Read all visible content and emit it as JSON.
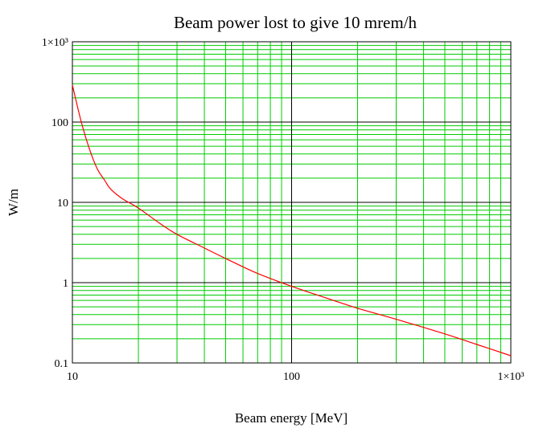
{
  "chart_data": {
    "type": "line",
    "title": "Beam power lost to give 10 mrem/h",
    "xlabel": "Beam energy [MeV]",
    "ylabel": "W/m",
    "xscale": "log",
    "yscale": "log",
    "xlim": [
      10,
      1000
    ],
    "ylim": [
      0.1,
      1000
    ],
    "grid": true,
    "x_tick_labels": [
      "10",
      "100",
      "1×10³"
    ],
    "y_tick_labels": [
      "0.1",
      "1",
      "10",
      "100",
      "1×10³"
    ],
    "series": [
      {
        "color": "#ff0000",
        "x": [
          10,
          11,
          12,
          13,
          14,
          15,
          17,
          20,
          25,
          30,
          40,
          50,
          70,
          100,
          150,
          200,
          300,
          500,
          700,
          1000
        ],
        "y": [
          290,
          98,
          45,
          26,
          19,
          14.5,
          11,
          8.5,
          5.5,
          4.0,
          2.7,
          2.0,
          1.3,
          0.9,
          0.62,
          0.48,
          0.35,
          0.23,
          0.17,
          0.123
        ]
      }
    ]
  },
  "colors": {
    "major_grid": "#000000",
    "minor_grid": "#00cc00",
    "curve": "#ff0000"
  }
}
